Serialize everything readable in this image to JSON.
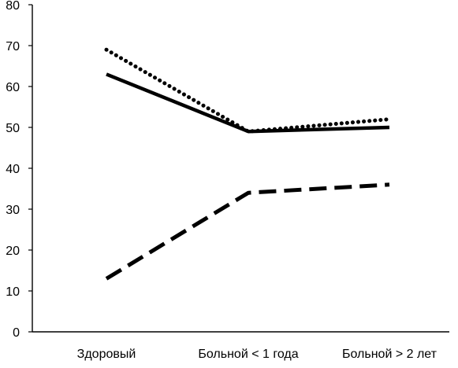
{
  "chart_data": {
    "type": "line",
    "title": "",
    "xlabel": "",
    "ylabel": "",
    "categories": [
      "Здоровый",
      "Больной < 1 года",
      "Больной > 2 лет"
    ],
    "yticks": [
      "0",
      "10",
      "20",
      "30",
      "40",
      "50",
      "60",
      "70",
      "80"
    ],
    "ylim": [
      0,
      80
    ],
    "grid": false,
    "legend": "none",
    "series": [
      {
        "style": "solid",
        "color": "#000000",
        "values": [
          63,
          49,
          50
        ]
      },
      {
        "style": "dotted",
        "color": "#000000",
        "values": [
          69,
          49,
          52
        ]
      },
      {
        "style": "dashed",
        "color": "#000000",
        "values": [
          13,
          34,
          36
        ]
      }
    ]
  }
}
